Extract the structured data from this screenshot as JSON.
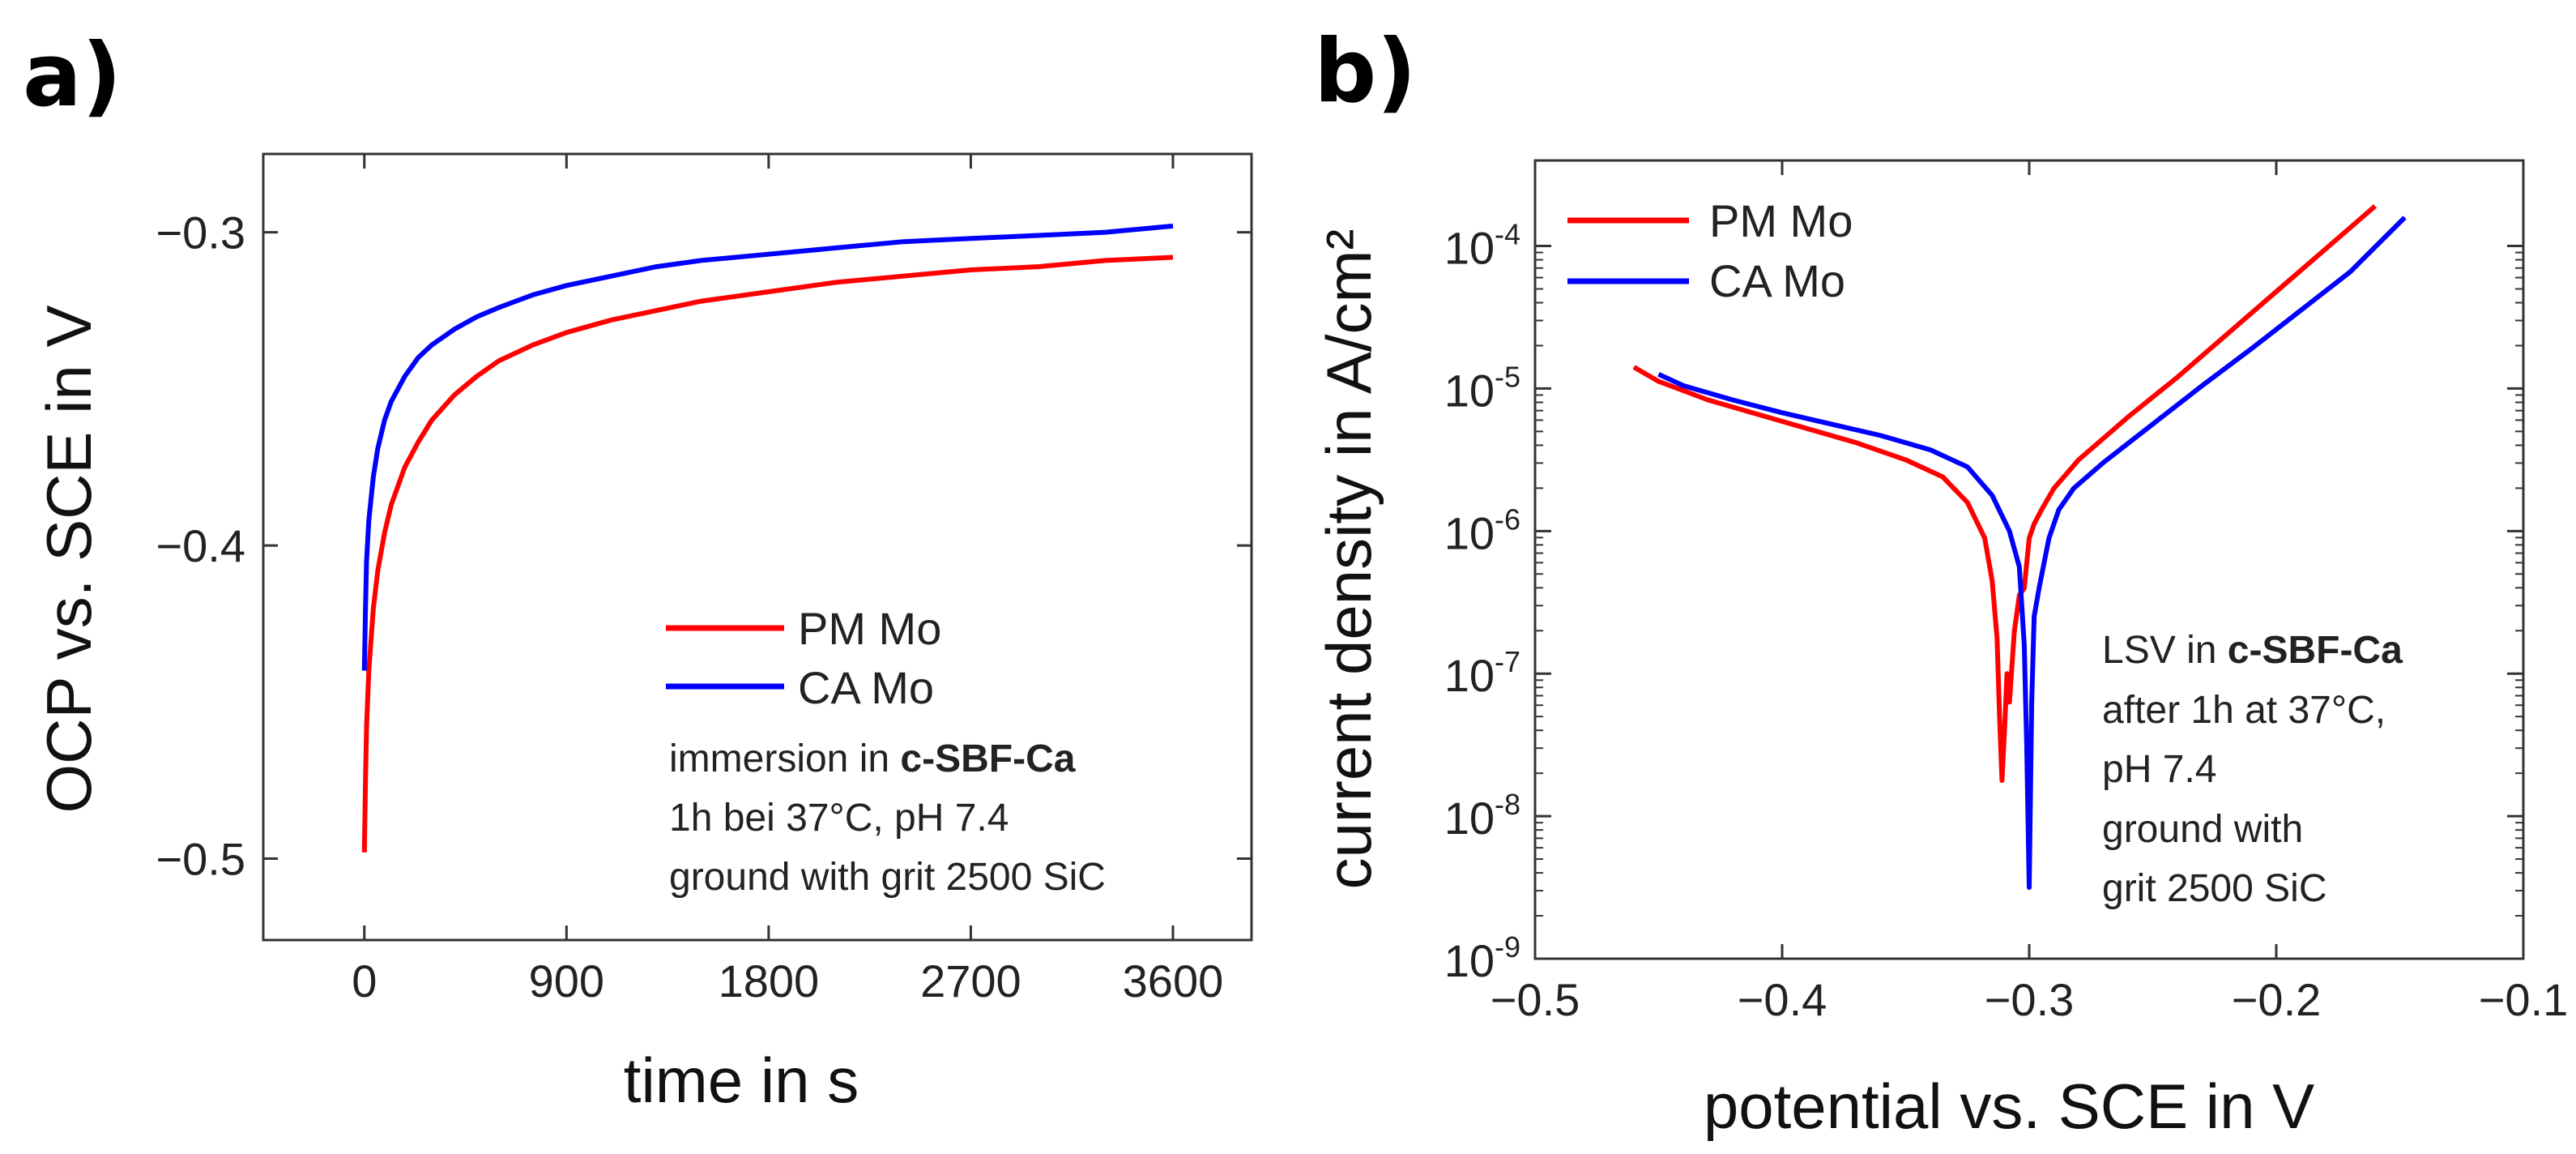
{
  "chart_data": [
    {
      "type": "line",
      "panel": "a)",
      "title": "",
      "xlabel": "time in s",
      "ylabel": "OCP vs. SCE in V",
      "xlim": [
        -450,
        3950
      ],
      "ylim": [
        -0.526,
        -0.275
      ],
      "xticks": [
        0,
        900,
        1800,
        2700,
        3600
      ],
      "xtick_labels": [
        "0",
        "900",
        "1800",
        "2700",
        "3600"
      ],
      "yticks": [
        -0.3,
        -0.4,
        -0.5
      ],
      "ytick_labels": [
        "−0.3",
        "−0.4",
        "−0.5"
      ],
      "series": [
        {
          "name": "PM Mo",
          "color": "#ff0000",
          "x": [
            0,
            5,
            10,
            20,
            40,
            60,
            90,
            120,
            180,
            240,
            300,
            400,
            500,
            600,
            750,
            900,
            1100,
            1300,
            1500,
            1800,
            2100,
            2400,
            2700,
            3000,
            3300,
            3600
          ],
          "y": [
            -0.498,
            -0.475,
            -0.458,
            -0.44,
            -0.42,
            -0.408,
            -0.396,
            -0.387,
            -0.375,
            -0.367,
            -0.36,
            -0.352,
            -0.346,
            -0.341,
            -0.336,
            -0.332,
            -0.328,
            -0.325,
            -0.322,
            -0.319,
            -0.316,
            -0.314,
            -0.312,
            -0.311,
            -0.309,
            -0.308
          ]
        },
        {
          "name": "CA Mo",
          "color": "#0000ff",
          "x": [
            0,
            5,
            10,
            20,
            40,
            60,
            90,
            120,
            180,
            240,
            300,
            400,
            500,
            600,
            750,
            900,
            1100,
            1300,
            1500,
            1800,
            2100,
            2400,
            2700,
            3000,
            3300,
            3600
          ],
          "y": [
            -0.44,
            -0.42,
            -0.405,
            -0.392,
            -0.378,
            -0.369,
            -0.36,
            -0.354,
            -0.346,
            -0.34,
            -0.336,
            -0.331,
            -0.327,
            -0.324,
            -0.32,
            -0.317,
            -0.314,
            -0.311,
            -0.309,
            -0.307,
            -0.305,
            -0.303,
            -0.302,
            -0.301,
            -0.3,
            -0.298
          ]
        }
      ],
      "legend": {
        "position": "bottom-right",
        "entries": [
          "PM Mo",
          "CA Mo"
        ],
        "annotation": [
          {
            "normal": "immersion in ",
            "bold": "c-SBF-Ca"
          },
          {
            "normal": "1h bei 37°C, pH 7.4",
            "bold": ""
          },
          {
            "normal": "ground with grit 2500 SiC",
            "bold": ""
          }
        ]
      }
    },
    {
      "type": "line",
      "panel": "b)",
      "title": "",
      "xlabel": "potential vs. SCE in V",
      "ylabel": "current density in A/cm²",
      "yscale": "log",
      "xlim": [
        -0.5,
        -0.1
      ],
      "ylim_log10": [
        -9,
        -3.4
      ],
      "xticks": [
        -0.5,
        -0.4,
        -0.3,
        -0.2,
        -0.1
      ],
      "xtick_labels": [
        "−0.5",
        "−0.4",
        "−0.3",
        "−0.2",
        "−0.1"
      ],
      "yticks_log10": [
        -9,
        -8,
        -7,
        -6,
        -5,
        -4
      ],
      "ytick_labels": [
        {
          "base": "10",
          "exp": "-9"
        },
        {
          "base": "10",
          "exp": "-8"
        },
        {
          "base": "10",
          "exp": "-7"
        },
        {
          "base": "10",
          "exp": "-6"
        },
        {
          "base": "10",
          "exp": "-5"
        },
        {
          "base": "10",
          "exp": "-4"
        }
      ],
      "series": [
        {
          "name": "PM Mo",
          "color": "#ff0000",
          "x": [
            -0.46,
            -0.45,
            -0.43,
            -0.41,
            -0.39,
            -0.37,
            -0.35,
            -0.335,
            -0.325,
            -0.318,
            -0.315,
            -0.313,
            -0.312,
            -0.311,
            -0.31,
            -0.309,
            -0.308,
            -0.306,
            -0.304,
            -0.302,
            -0.3,
            -0.298,
            -0.295,
            -0.29,
            -0.28,
            -0.26,
            -0.24,
            -0.22,
            -0.2,
            -0.18,
            -0.16
          ],
          "log10_y": [
            -4.85,
            -4.95,
            -5.08,
            -5.18,
            -5.28,
            -5.38,
            -5.5,
            -5.62,
            -5.8,
            -6.05,
            -6.35,
            -6.75,
            -7.3,
            -7.75,
            -7.4,
            -7.0,
            -7.2,
            -6.7,
            -6.45,
            -6.4,
            -6.05,
            -5.95,
            -5.85,
            -5.7,
            -5.5,
            -5.2,
            -4.92,
            -4.62,
            -4.32,
            -4.02,
            -3.72
          ]
        },
        {
          "name": "CA Mo",
          "color": "#0000ff",
          "x": [
            -0.45,
            -0.44,
            -0.42,
            -0.4,
            -0.38,
            -0.36,
            -0.34,
            -0.325,
            -0.315,
            -0.308,
            -0.304,
            -0.302,
            -0.301,
            -0.3,
            -0.299,
            -0.298,
            -0.296,
            -0.292,
            -0.288,
            -0.282,
            -0.27,
            -0.25,
            -0.23,
            -0.21,
            -0.19,
            -0.17,
            -0.148
          ],
          "log10_y": [
            -4.9,
            -4.98,
            -5.08,
            -5.17,
            -5.25,
            -5.33,
            -5.43,
            -5.55,
            -5.75,
            -6.0,
            -6.25,
            -6.8,
            -7.5,
            -8.5,
            -7.2,
            -6.6,
            -6.4,
            -6.05,
            -5.85,
            -5.7,
            -5.52,
            -5.25,
            -4.98,
            -4.72,
            -4.45,
            -4.18,
            -3.8
          ]
        }
      ],
      "legend": {
        "position": "top-left",
        "entries": [
          "PM Mo",
          "CA Mo"
        ]
      },
      "annotation": [
        {
          "normal": "LSV in ",
          "bold": "c-SBF-Ca"
        },
        {
          "normal": "after 1h at 37°C,",
          "bold": ""
        },
        {
          "normal": "pH 7.4",
          "bold": ""
        },
        {
          "normal": "ground with",
          "bold": ""
        },
        {
          "normal": "grit 2500 SiC",
          "bold": ""
        }
      ]
    }
  ]
}
